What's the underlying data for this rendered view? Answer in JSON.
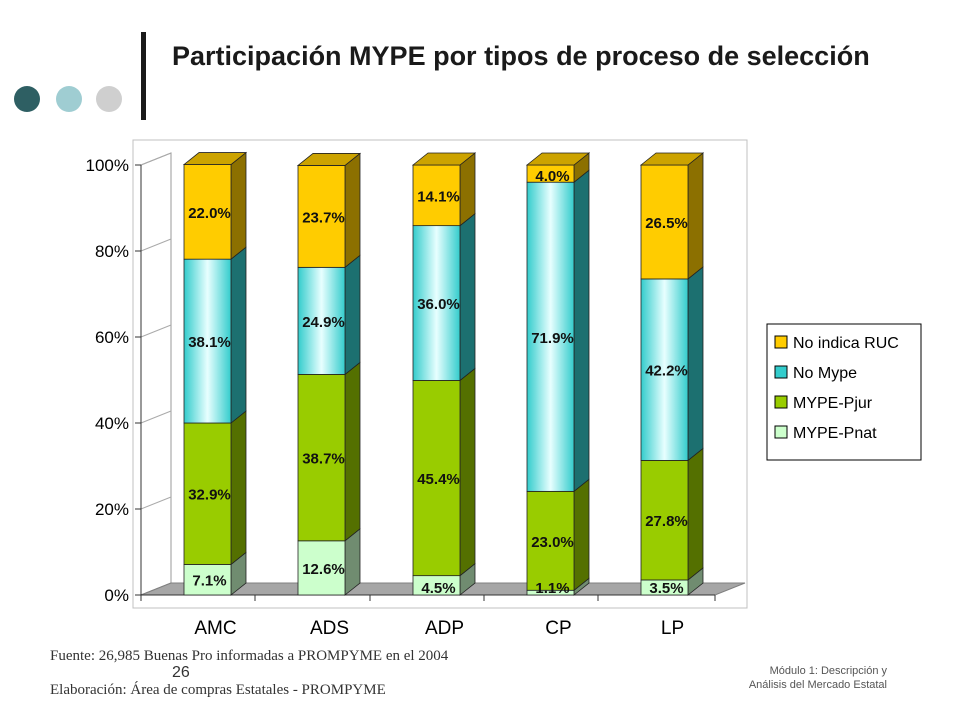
{
  "header": {
    "title": "Participación MYPE por tipos de proceso de selección",
    "dot_colors": [
      "#2e5f63",
      "#9fcdd2",
      "#cfcfcf"
    ]
  },
  "chart_data": {
    "type": "bar",
    "stacked": true,
    "percent": true,
    "categories": [
      "AMC",
      "ADS",
      "ADP",
      "CP",
      "LP"
    ],
    "yticks": [
      "0%",
      "20%",
      "40%",
      "60%",
      "80%",
      "100%"
    ],
    "ylim": [
      0,
      100
    ],
    "series": [
      {
        "name": "MYPE-Pnat",
        "color": "#ccffcc",
        "values": [
          7.1,
          12.6,
          4.5,
          1.1,
          3.5
        ],
        "labels": [
          "7.1%",
          "12.6%",
          "4.5%",
          "1.1%",
          "3.5%"
        ]
      },
      {
        "name": "MYPE-Pjur",
        "color": "#99cc00",
        "values": [
          32.9,
          38.7,
          45.4,
          23.0,
          27.8
        ],
        "labels": [
          "32.9%",
          "38.7%",
          "45.4%",
          "23.0%",
          "27.8%"
        ]
      },
      {
        "name": "No Mype",
        "color": "#33cccc",
        "values": [
          38.1,
          24.9,
          36.0,
          71.9,
          42.2
        ],
        "labels": [
          "38.1%",
          "24.9%",
          "36.0%",
          "71.9%",
          "42.2%"
        ]
      },
      {
        "name": "No indica RUC",
        "color": "#ffcc00",
        "values": [
          22.0,
          23.7,
          14.1,
          4.0,
          26.5
        ],
        "labels": [
          "22.0%",
          "23.7%",
          "14.1%",
          "4.0%",
          "26.5%"
        ]
      }
    ],
    "legend": {
      "position": "right",
      "items": [
        "No indica RUC",
        "No Mype",
        "MYPE-Pjur",
        "MYPE-Pnat"
      ]
    }
  },
  "footer": {
    "source": "Fuente: 26,985 Buenas Pro informadas a PROMPYME en el 2004",
    "credit": "Elaboración: Área de compras Estatales - PROMPYME",
    "slide_number": "26",
    "module_line1": "Módulo 1: Descripción y",
    "module_line2": "Análisis del Mercado Estatal"
  }
}
